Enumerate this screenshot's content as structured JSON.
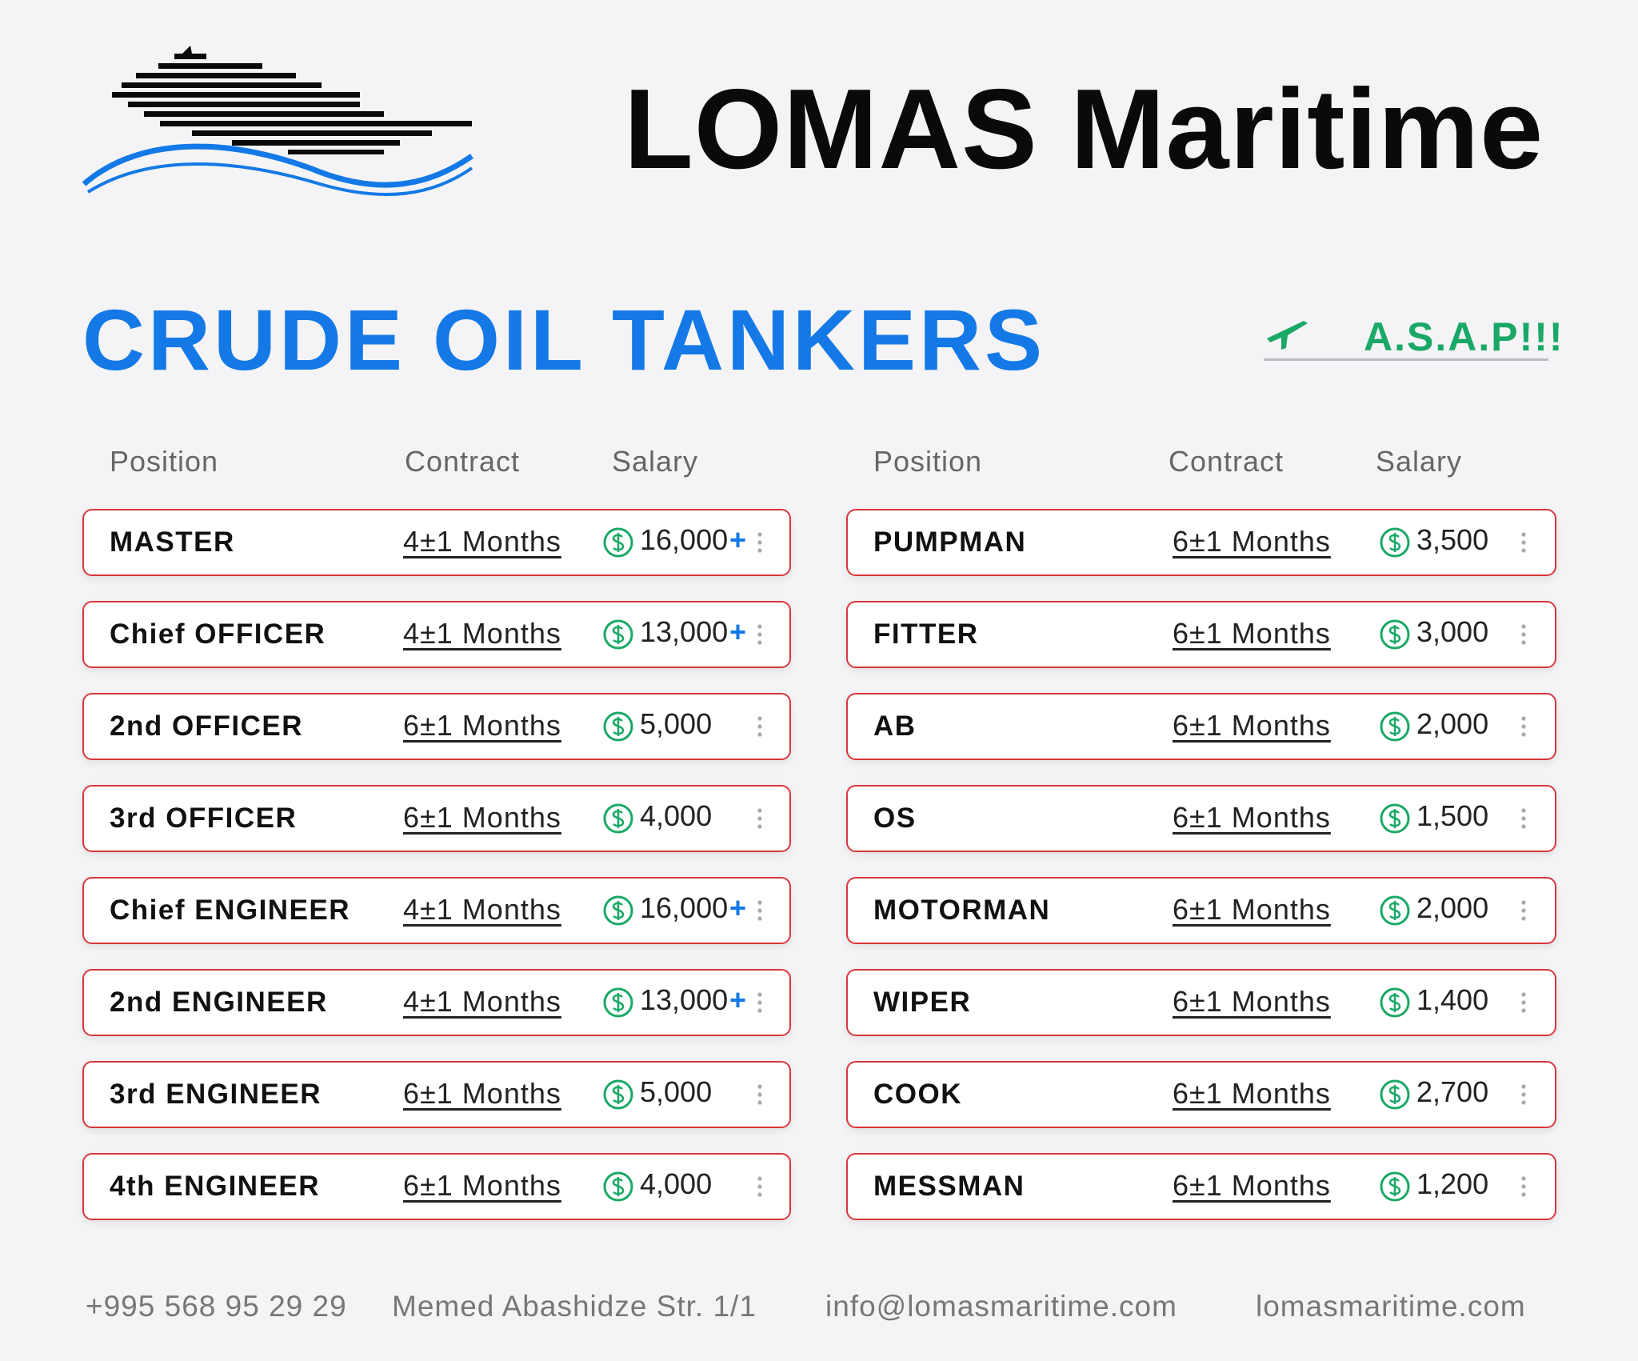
{
  "header": {
    "title": "LOMAS Maritime"
  },
  "section": {
    "title": "CRUDE OIL TANKERS",
    "badge": "A.S.A.P!!!"
  },
  "tables": [
    {
      "columns": [
        "Position",
        "Contract",
        "Salary"
      ],
      "rows": [
        {
          "position": "MASTER",
          "contract": "4±1 Months",
          "salary": "16,000",
          "plus": "+"
        },
        {
          "position": "Chief OFFICER",
          "contract": "4±1 Months",
          "salary": "13,000",
          "plus": "+"
        },
        {
          "position": "2nd OFFICER",
          "contract": "6±1 Months",
          "salary": "5,000"
        },
        {
          "position": "3rd OFFICER",
          "contract": "6±1 Months",
          "salary": "4,000"
        },
        {
          "position": "Chief ENGINEER",
          "contract": "4±1 Months",
          "salary": "16,000",
          "plus": "+"
        },
        {
          "position": "2nd ENGINEER",
          "contract": "4±1 Months",
          "salary": "13,000",
          "plus": "+"
        },
        {
          "position": "3rd ENGINEER",
          "contract": "6±1 Months",
          "salary": "5,000"
        },
        {
          "position": "4th ENGINEER",
          "contract": "6±1 Months",
          "salary": "4,000"
        }
      ]
    },
    {
      "columns": [
        "Position",
        "Contract",
        "Salary"
      ],
      "rows": [
        {
          "position": "PUMPMAN",
          "contract": "6±1 Months",
          "salary": "3,500"
        },
        {
          "position": "FITTER",
          "contract": "6±1 Months",
          "salary": "3,000"
        },
        {
          "position": "AB",
          "contract": "6±1 Months",
          "salary": "2,000"
        },
        {
          "position": "OS",
          "contract": "6±1 Months",
          "salary": "1,500"
        },
        {
          "position": "MOTORMAN",
          "contract": "6±1 Months",
          "salary": "2,000"
        },
        {
          "position": "WIPER",
          "contract": "6±1 Months",
          "salary": "1,400"
        },
        {
          "position": "COOK",
          "contract": "6±1 Months",
          "salary": "2,700"
        },
        {
          "position": "MESSMAN",
          "contract": "6±1 Months",
          "salary": "1,200"
        }
      ]
    }
  ],
  "footer": {
    "phone": "+995 568 95 29 29",
    "address": "Memed Abashidze Str. 1/1",
    "email": "info@lomasmaritime.com",
    "website": "lomasmaritime.com"
  }
}
